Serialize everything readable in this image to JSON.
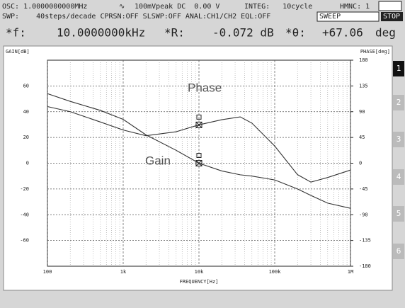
{
  "header": {
    "osc": "OSC: 1.0000000000MHz",
    "wave": "∿",
    "level": "100mVpeak DC  0.00 V",
    "integ": "INTEG:   10cycle",
    "hmnc": "HMNC: 1",
    "swp": "SWP:    40steps/decade CPRSN:OFF SLSWP:OFF ANAL:CH1/CH2 EQL:OFF",
    "sweep": "SWEEP",
    "stop": "STOP",
    "f_label": "*f:",
    "f_value": "10.0000000kHz",
    "r_label": "*R:",
    "r_value": "-0.072 dB",
    "t_label": "*θ:",
    "t_value": "+67.06",
    "t_unit": "deg"
  },
  "side_buttons": [
    "1",
    "2",
    "3",
    "4",
    "5",
    "6"
  ],
  "chart_data": {
    "type": "line",
    "ylabel": "GAIN[dB]",
    "y2label": "PHASE[deg]",
    "xlabel": "FREQUENCY[Hz]",
    "xscale": "log",
    "grid": true,
    "xlim": [
      100,
      1000000
    ],
    "xticks": [
      100,
      {
        "value": 1000,
        "label": "1k"
      },
      {
        "value": 10000,
        "label": "10k"
      },
      {
        "value": 100000,
        "label": "100k"
      },
      {
        "value": 1000000,
        "label": "1M"
      }
    ],
    "ylim": [
      -80,
      80
    ],
    "yticks": [
      -60,
      -40,
      -20,
      0,
      20,
      40,
      60
    ],
    "y2lim": [
      -180,
      180
    ],
    "y2ticks": [
      -180,
      -135,
      -90,
      -45,
      0,
      45,
      90,
      135,
      180
    ],
    "x": [
      100,
      200,
      500,
      1000,
      2000,
      5000,
      10000,
      20000,
      35000,
      50000,
      100000,
      200000,
      300000,
      500000,
      1000000
    ],
    "series": [
      {
        "name": "Gain",
        "color": "#333333",
        "values": [
          54,
          48,
          41,
          34,
          22,
          10,
          0,
          -6,
          -9,
          -10,
          -13,
          -20,
          -25,
          -31,
          -35
        ]
      },
      {
        "name": "Phase",
        "color": "#333333",
        "axis": "y2",
        "values": [
          99,
          90,
          72,
          58,
          48,
          55,
          67,
          76,
          81,
          70,
          30,
          -20,
          -33,
          -25,
          -12
        ]
      }
    ],
    "marker_index": 6
  }
}
